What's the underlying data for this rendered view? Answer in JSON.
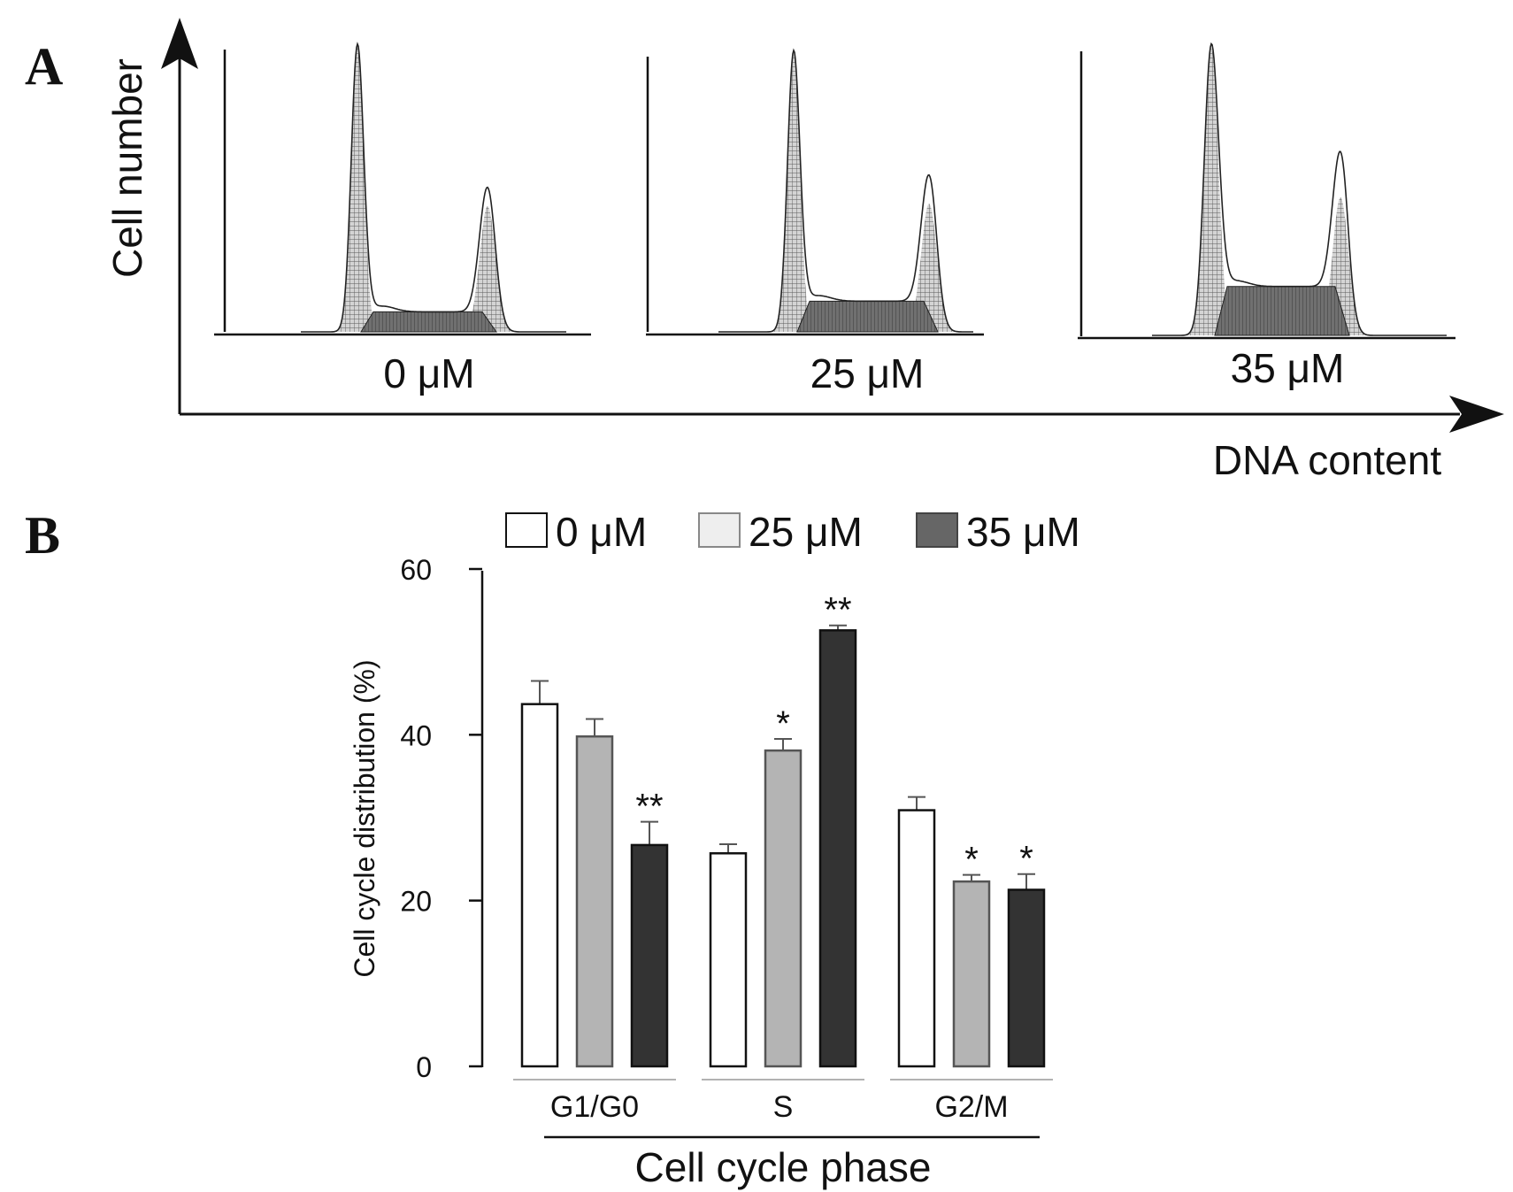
{
  "panel_a": {
    "letter": "A",
    "y_axis_label": "Cell number",
    "x_axis_label": "DNA content",
    "histograms": [
      {
        "label": "0 μM",
        "g1_peak": 1.0,
        "s_plateau": 0.07,
        "g2_peak": 0.44
      },
      {
        "label": "25 μM",
        "g1_peak": 1.0,
        "s_plateau": 0.11,
        "g2_peak": 0.46
      },
      {
        "label": "35 μM",
        "g1_peak": 1.0,
        "s_plateau": 0.17,
        "g2_peak": 0.48
      }
    ]
  },
  "chart_data": {
    "type": "bar",
    "panel_letter": "B",
    "categories": [
      "G1/G0",
      "S",
      "G2/M"
    ],
    "series": [
      {
        "name": "0 μM",
        "color": "#ffffff",
        "values": [
          43.7,
          25.7,
          30.9
        ],
        "errors": [
          2.8,
          1.1,
          1.6
        ],
        "sig": [
          "",
          "",
          ""
        ]
      },
      {
        "name": "25 μM",
        "color": "#b4b4b4",
        "values": [
          39.8,
          38.1,
          22.3
        ],
        "errors": [
          2.1,
          1.4,
          0.8
        ],
        "sig": [
          "",
          "*",
          "*"
        ]
      },
      {
        "name": "35 μM",
        "color": "#333333",
        "values": [
          26.7,
          52.6,
          21.3
        ],
        "errors": [
          2.8,
          0.6,
          1.9
        ],
        "sig": [
          "**",
          "**",
          "*"
        ]
      }
    ],
    "ylabel": "Cell cycle distribution  (%)",
    "xlabel": "Cell cycle phase",
    "ylim": [
      0,
      60
    ],
    "yticks": [
      0,
      20,
      40,
      60
    ],
    "legend_position": "top"
  }
}
